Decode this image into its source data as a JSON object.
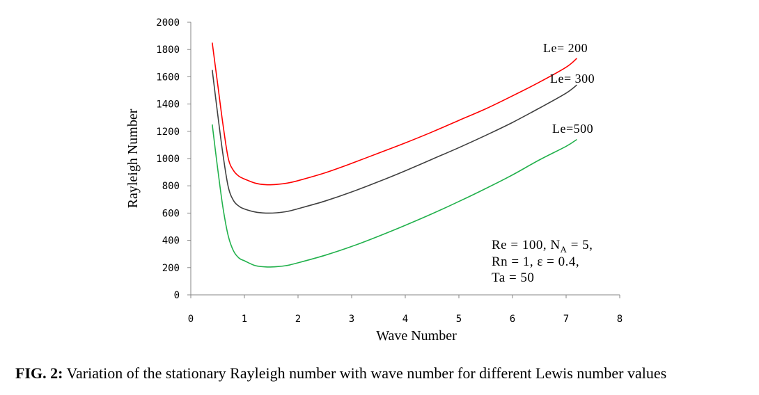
{
  "chart_data": {
    "type": "line",
    "xlabel": "Wave Number",
    "ylabel": "Rayleigh Number",
    "xlim": [
      0,
      8
    ],
    "ylim": [
      0,
      2000
    ],
    "x_ticks": [
      "0",
      "1",
      "2",
      "3",
      "4",
      "5",
      "6",
      "7",
      "8"
    ],
    "y_ticks": [
      "0",
      "200",
      "400",
      "600",
      "800",
      "1000",
      "1200",
      "1400",
      "1600",
      "1800",
      "2000"
    ],
    "grid": false,
    "legend": "inline labels",
    "series": [
      {
        "name": "Le= 200",
        "color": "#ff0000",
        "x": [
          0.4,
          0.5,
          0.6,
          0.7,
          0.8,
          0.9,
          1.0,
          1.2,
          1.4,
          1.6,
          1.8,
          2.0,
          2.5,
          3.0,
          3.5,
          4.0,
          4.5,
          5.0,
          5.5,
          6.0,
          6.5,
          7.0,
          7.2
        ],
        "values": [
          1850,
          1550,
          1250,
          1000,
          910,
          870,
          850,
          820,
          808,
          810,
          820,
          838,
          895,
          965,
          1040,
          1115,
          1195,
          1280,
          1365,
          1460,
          1560,
          1670,
          1735
        ]
      },
      {
        "name": "Le= 300",
        "color": "#404040",
        "x": [
          0.4,
          0.5,
          0.6,
          0.7,
          0.8,
          0.9,
          1.0,
          1.2,
          1.4,
          1.6,
          1.8,
          2.0,
          2.5,
          3.0,
          3.5,
          4.0,
          4.5,
          5.0,
          5.5,
          6.0,
          6.5,
          7.0,
          7.2
        ],
        "values": [
          1650,
          1330,
          1030,
          790,
          690,
          650,
          630,
          608,
          600,
          602,
          612,
          632,
          688,
          755,
          830,
          910,
          995,
          1080,
          1170,
          1265,
          1370,
          1480,
          1540
        ]
      },
      {
        "name": "Le=500",
        "color": "#22b14c",
        "x": [
          0.4,
          0.5,
          0.6,
          0.7,
          0.8,
          0.9,
          1.0,
          1.2,
          1.4,
          1.6,
          1.8,
          2.0,
          2.5,
          3.0,
          3.5,
          4.0,
          4.5,
          5.0,
          5.5,
          6.0,
          6.5,
          7.0,
          7.2
        ],
        "values": [
          1250,
          930,
          640,
          430,
          320,
          270,
          250,
          215,
          205,
          207,
          216,
          235,
          290,
          355,
          430,
          510,
          595,
          685,
          780,
          880,
          990,
          1090,
          1140
        ]
      }
    ],
    "annotations": [
      {
        "type": "series-label",
        "series": 0,
        "text": "Le= 200"
      },
      {
        "type": "series-label",
        "series": 1,
        "text": "Le= 300"
      },
      {
        "type": "series-label",
        "series": 2,
        "text": "Le=500"
      }
    ],
    "parameters": {
      "line1_a": "Re = 100, N",
      "line1_sub": "A",
      "line1_b": " = 5,",
      "line2": "Rn = 1, ε = 0.4,",
      "line3": "Ta = 50"
    }
  },
  "caption": {
    "lead": "FIG. 2:",
    "text": " Variation of the stationary Rayleigh number with wave number for different Lewis number values"
  }
}
